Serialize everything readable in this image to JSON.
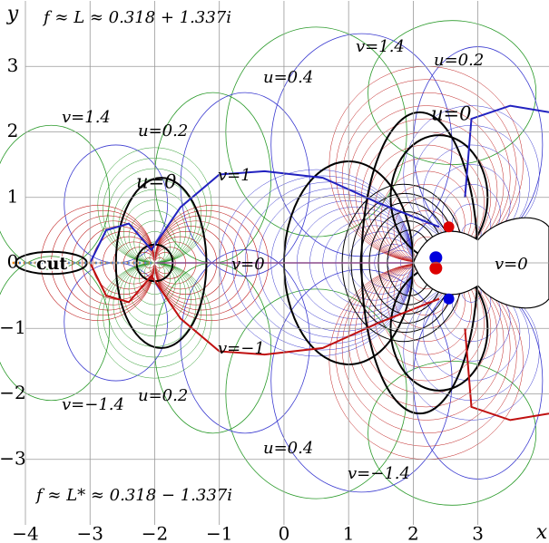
{
  "chart_data": {
    "type": "contour",
    "x_label": "x",
    "y_label": "y",
    "xlim": [
      -4,
      4.1
    ],
    "ylim": [
      -4,
      4
    ],
    "xticks": [
      {
        "value": -4,
        "label": "−4"
      },
      {
        "value": -3,
        "label": "−3"
      },
      {
        "value": -2,
        "label": "−2"
      },
      {
        "value": -1,
        "label": "−1"
      },
      0,
      1,
      2,
      3
    ],
    "yticks": [
      {
        "value": -3,
        "label": "−3"
      },
      {
        "value": -2,
        "label": "−2"
      },
      {
        "value": -1,
        "label": "−1"
      },
      0,
      1,
      2,
      3
    ],
    "grid": true,
    "annotations": [
      "f ≈ L ≈ 0.318 + 1.337i",
      "f ≈ L* ≈ 0.318 − 1.337i",
      "cut",
      "u=0",
      "u=0",
      "u=0.2",
      "u=0.2",
      "u=0.2",
      "u=0.4",
      "u=0.4",
      "v=1.4",
      "v=1.4",
      "v=1",
      "v=0",
      "v=0",
      "v=−1",
      "v=−1.4",
      "v=−1.4"
    ]
  }
}
